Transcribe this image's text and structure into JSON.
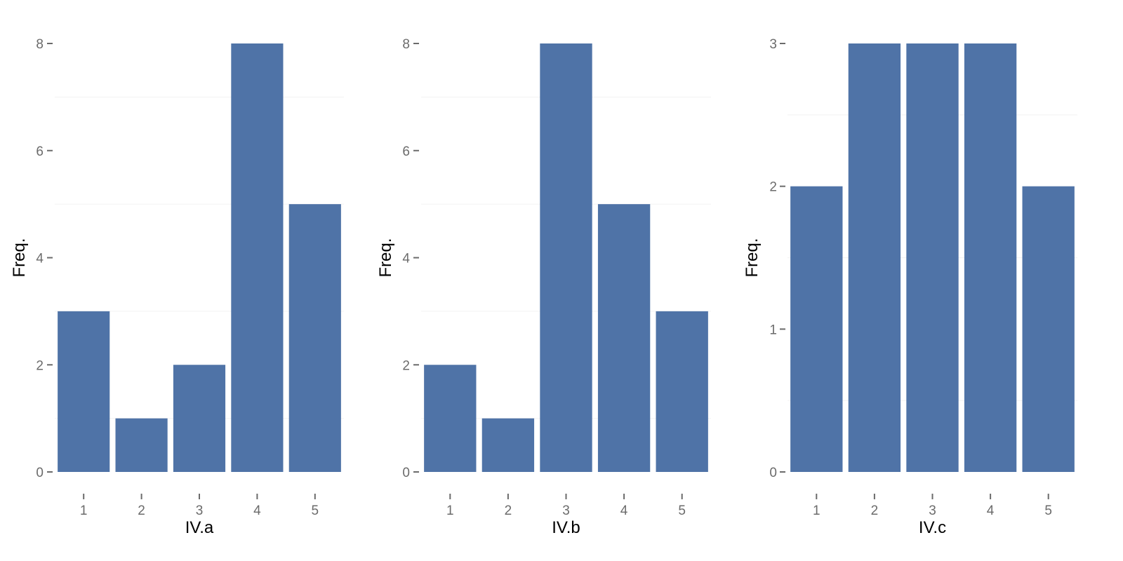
{
  "chart_data": [
    {
      "type": "bar",
      "categories": [
        "1",
        "2",
        "3",
        "4",
        "5"
      ],
      "values": [
        3,
        1,
        2,
        8,
        5
      ],
      "xlabel": "IV.a",
      "ylabel": "Freq.",
      "ylim": [
        0,
        8
      ],
      "yticks": [
        "0",
        "2",
        "4",
        "6",
        "8"
      ],
      "grid": true
    },
    {
      "type": "bar",
      "categories": [
        "1",
        "2",
        "3",
        "4",
        "5"
      ],
      "values": [
        2,
        1,
        8,
        5,
        3
      ],
      "xlabel": "IV.b",
      "ylabel": "Freq.",
      "ylim": [
        0,
        8
      ],
      "yticks": [
        "0",
        "2",
        "4",
        "6",
        "8"
      ],
      "grid": true
    },
    {
      "type": "bar",
      "categories": [
        "1",
        "2",
        "3",
        "4",
        "5"
      ],
      "values": [
        2,
        3,
        3,
        3,
        2
      ],
      "xlabel": "IV.c",
      "ylabel": "Freq.",
      "ylim": [
        0,
        3
      ],
      "yticks": [
        "0",
        "1",
        "2",
        "3"
      ],
      "grid": true
    }
  ],
  "colors": {
    "bar": "#4f73a7",
    "tick_text": "#6b6b6b",
    "axis_title": "#000000"
  }
}
